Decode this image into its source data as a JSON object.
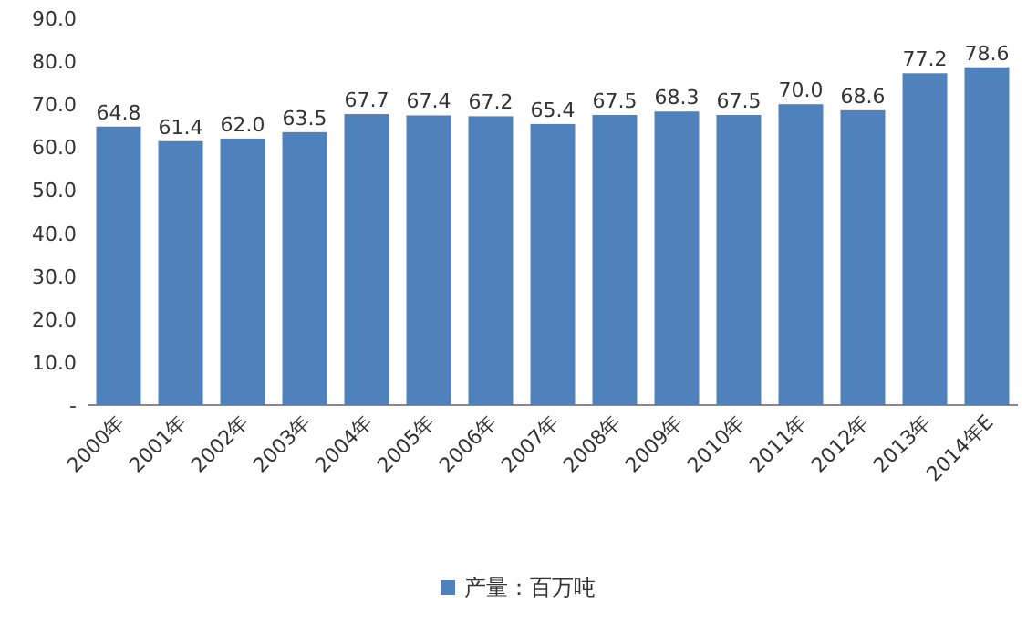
{
  "chart_data": {
    "type": "bar",
    "categories": [
      "2000年",
      "2001年",
      "2002年",
      "2003年",
      "2004年",
      "2005年",
      "2006年",
      "2007年",
      "2008年",
      "2009年",
      "2010年",
      "2011年",
      "2012年",
      "2013年",
      "2014年E"
    ],
    "series": [
      {
        "name": "产量：百万吨",
        "color": "#4f81bd",
        "values": [
          64.8,
          61.4,
          62.0,
          63.5,
          67.7,
          67.4,
          67.2,
          65.4,
          67.5,
          68.3,
          67.5,
          70.0,
          68.6,
          77.2,
          78.6
        ],
        "value_labels": [
          "64.8",
          "61.4",
          "62.0",
          "63.5",
          "67.7",
          "67.4",
          "67.2",
          "65.4",
          "67.5",
          "68.3",
          "67.5",
          "70.0",
          "68.6",
          "77.2",
          "78.6"
        ]
      }
    ],
    "ylim": [
      0,
      90
    ],
    "yticks": [
      {
        "value": 0,
        "label": "-"
      },
      {
        "value": 10,
        "label": "10.0"
      },
      {
        "value": 20,
        "label": "20.0"
      },
      {
        "value": 30,
        "label": "30.0"
      },
      {
        "value": 40,
        "label": "40.0"
      },
      {
        "value": 50,
        "label": "50.0"
      },
      {
        "value": 60,
        "label": "60.0"
      },
      {
        "value": 70,
        "label": "70.0"
      },
      {
        "value": 80,
        "label": "80.0"
      },
      {
        "value": 90,
        "label": "90.0"
      }
    ],
    "legend": "bottom"
  }
}
